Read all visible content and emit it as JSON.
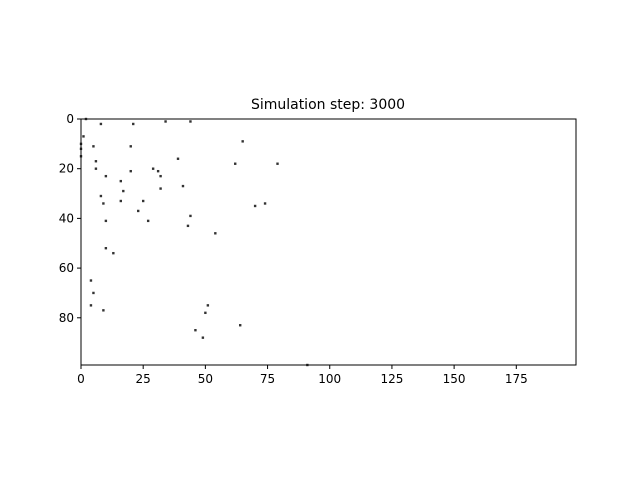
{
  "chart_data": {
    "type": "scatter",
    "title": "Simulation step: 3000",
    "xlabel": "",
    "ylabel": "",
    "xlim": [
      0,
      199
    ],
    "ylim": [
      99,
      0
    ],
    "y_axis_inverted": true,
    "grid": false,
    "legend": "none",
    "x_ticks": [
      0,
      25,
      50,
      75,
      100,
      125,
      150,
      175
    ],
    "y_ticks": [
      0,
      20,
      40,
      60,
      80
    ],
    "marker_color": "#333333",
    "points": [
      {
        "x": 2,
        "y": 0
      },
      {
        "x": 8,
        "y": 2
      },
      {
        "x": 21,
        "y": 2
      },
      {
        "x": 34,
        "y": 1
      },
      {
        "x": 44,
        "y": 1
      },
      {
        "x": 1,
        "y": 7
      },
      {
        "x": 0,
        "y": 10
      },
      {
        "x": 0,
        "y": 12
      },
      {
        "x": 5,
        "y": 11
      },
      {
        "x": 20,
        "y": 11
      },
      {
        "x": 65,
        "y": 9
      },
      {
        "x": 0,
        "y": 15
      },
      {
        "x": 6,
        "y": 17
      },
      {
        "x": 6,
        "y": 20
      },
      {
        "x": 39,
        "y": 16
      },
      {
        "x": 62,
        "y": 18
      },
      {
        "x": 79,
        "y": 18
      },
      {
        "x": 20,
        "y": 21
      },
      {
        "x": 29,
        "y": 20
      },
      {
        "x": 31,
        "y": 21
      },
      {
        "x": 10,
        "y": 23
      },
      {
        "x": 32,
        "y": 23
      },
      {
        "x": 16,
        "y": 25
      },
      {
        "x": 41,
        "y": 27
      },
      {
        "x": 32,
        "y": 28
      },
      {
        "x": 17,
        "y": 29
      },
      {
        "x": 8,
        "y": 31
      },
      {
        "x": 9,
        "y": 34
      },
      {
        "x": 16,
        "y": 33
      },
      {
        "x": 25,
        "y": 33
      },
      {
        "x": 74,
        "y": 34
      },
      {
        "x": 70,
        "y": 35
      },
      {
        "x": 23,
        "y": 37
      },
      {
        "x": 44,
        "y": 39
      },
      {
        "x": 10,
        "y": 41
      },
      {
        "x": 27,
        "y": 41
      },
      {
        "x": 43,
        "y": 43
      },
      {
        "x": 54,
        "y": 46
      },
      {
        "x": 10,
        "y": 52
      },
      {
        "x": 13,
        "y": 54
      },
      {
        "x": 4,
        "y": 65
      },
      {
        "x": 5,
        "y": 70
      },
      {
        "x": 4,
        "y": 75
      },
      {
        "x": 9,
        "y": 77
      },
      {
        "x": 51,
        "y": 75
      },
      {
        "x": 50,
        "y": 78
      },
      {
        "x": 64,
        "y": 83
      },
      {
        "x": 46,
        "y": 85
      },
      {
        "x": 49,
        "y": 88
      },
      {
        "x": 91,
        "y": 99
      }
    ]
  }
}
